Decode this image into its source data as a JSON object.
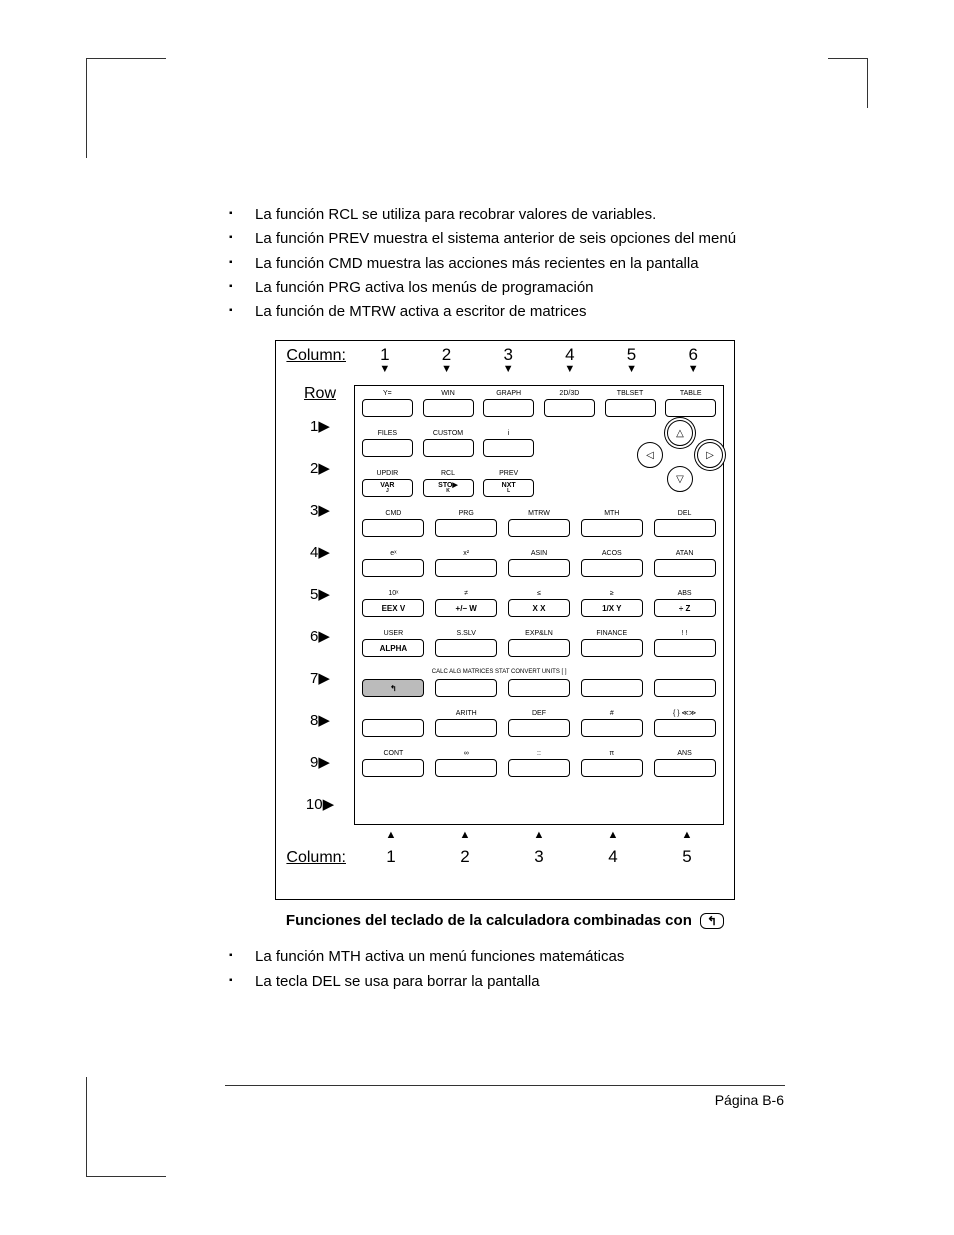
{
  "bullets_top": [
    "La función RCL se utiliza para recobrar valores de variables.",
    "La función PREV muestra el sistema anterior de seis opciones del menú",
    "La función CMD muestra las acciones más recientes en la pantalla",
    "La función PRG activa los menús de programación",
    "La función de MTRW activa a escritor de matrices"
  ],
  "caption": "Funciones del teclado de la calculadora combinadas con",
  "shift_key_glyph": "↰",
  "bullets_bottom": [
    "La función MTH activa un menú funciones matemáticas",
    "La tecla DEL se usa para borrar la pantalla"
  ],
  "page_number": "Página B-6",
  "figure": {
    "column_label": "Column:",
    "row_label": "Row",
    "top_columns": [
      "1",
      "2",
      "3",
      "4",
      "5",
      "6"
    ],
    "bottom_columns": [
      "1",
      "2",
      "3",
      "4",
      "5"
    ],
    "down_arrow": "▼",
    "up_arrow": "▲",
    "right_arrow": "▶",
    "row_numbers": [
      "1",
      "2",
      "3",
      "4",
      "5",
      "6",
      "7",
      "8",
      "9",
      "10"
    ],
    "rows": [
      {
        "n": 6,
        "cells": [
          {
            "l": "Y=",
            "t": ""
          },
          {
            "l": "WIN",
            "t": ""
          },
          {
            "l": "GRAPH",
            "t": ""
          },
          {
            "l": "2D/3D",
            "t": ""
          },
          {
            "l": "TBLSET",
            "t": ""
          },
          {
            "l": "TABLE",
            "t": ""
          }
        ]
      },
      {
        "n": 6,
        "cells": [
          {
            "l": "FILES",
            "t": ""
          },
          {
            "l": "CUSTOM",
            "t": ""
          },
          {
            "l": "i",
            "t": ""
          },
          {
            "dpad": true
          },
          {
            "dpad": true
          },
          {
            "dpad": true
          }
        ]
      },
      {
        "n": 6,
        "cells": [
          {
            "l": "UPDIR",
            "t": "VAR",
            "sub": "J"
          },
          {
            "l": "RCL",
            "t": "STO▶",
            "sub": "K"
          },
          {
            "l": "PREV",
            "t": "NXT",
            "sub": "L"
          },
          {
            "dpad": true
          },
          {
            "dpad": true
          },
          {
            "dpad": true
          }
        ]
      },
      {
        "n": 5,
        "cells": [
          {
            "l": "CMD",
            "t": ""
          },
          {
            "l": "PRG",
            "t": ""
          },
          {
            "l": "MTRW",
            "t": ""
          },
          {
            "l": "MTH",
            "t": ""
          },
          {
            "l": "DEL",
            "t": ""
          }
        ]
      },
      {
        "n": 5,
        "cells": [
          {
            "l": "eˣ",
            "t": ""
          },
          {
            "l": "x²",
            "t": ""
          },
          {
            "l": "ASIN",
            "t": ""
          },
          {
            "l": "ACOS",
            "t": ""
          },
          {
            "l": "ATAN",
            "t": ""
          }
        ]
      },
      {
        "n": 5,
        "cells": [
          {
            "l": "10ˣ",
            "t": "EEX  V"
          },
          {
            "l": "≠",
            "t": "+/− W"
          },
          {
            "l": "≤",
            "t": "X    X"
          },
          {
            "l": "≥",
            "t": "1/X  Y"
          },
          {
            "l": "ABS",
            "t": "÷    Z"
          }
        ]
      },
      {
        "n": 5,
        "cells": [
          {
            "l": "USER",
            "t": "ALPHA"
          },
          {
            "l": "S.SLV",
            "t": ""
          },
          {
            "l": "EXP&LN",
            "t": ""
          },
          {
            "l": "FINANCE",
            "t": ""
          },
          {
            "l": "! !",
            "t": ""
          }
        ]
      },
      {
        "n": 5,
        "cells": [
          {
            "l": "",
            "t": "↰",
            "dark": true
          },
          {
            "banner": "CALC  ALG  MATRICES STAT  CONVERT UNITS  [ ]",
            "t": ""
          },
          {
            "l": "",
            "t": ""
          },
          {
            "l": "",
            "t": ""
          },
          {
            "l": "",
            "t": ""
          }
        ]
      },
      {
        "n": 5,
        "cells": [
          {
            "l": "",
            "t": ""
          },
          {
            "l": "ARITH",
            "t": ""
          },
          {
            "l": "DEF",
            "t": ""
          },
          {
            "l": "#",
            "t": ""
          },
          {
            "l": "{ }  ≪≫",
            "t": ""
          }
        ]
      },
      {
        "n": 5,
        "cells": [
          {
            "l": "CONT",
            "t": ""
          },
          {
            "l": "∞",
            "t": ""
          },
          {
            "l": "::",
            "t": ""
          },
          {
            "l": "π",
            "t": ""
          },
          {
            "l": "ANS",
            "t": ""
          }
        ]
      }
    ],
    "dpad": {
      "up": "△",
      "down": "▽",
      "left": "◁",
      "right": "▷"
    }
  }
}
